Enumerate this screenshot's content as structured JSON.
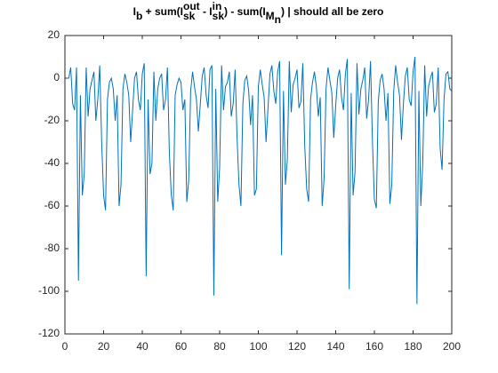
{
  "chart_data": {
    "type": "line",
    "title": [
      {
        "text": "I"
      },
      {
        "text": "b",
        "style": "sub"
      },
      {
        "text": " + sum(I"
      },
      {
        "text": "out",
        "style": "sup"
      },
      {
        "text": "sk",
        "style": "sub"
      },
      {
        "text": " - I"
      },
      {
        "text": "in",
        "style": "sup"
      },
      {
        "text": "sk",
        "style": "sub"
      },
      {
        "text": ") - sum(I"
      },
      {
        "text": "M",
        "style": "sub"
      },
      {
        "text": "n",
        "style": "subsub"
      },
      {
        "text": ") | should all be zero"
      }
    ],
    "color": "#0072bd",
    "xlim": [
      0,
      200
    ],
    "xticks": [
      0,
      20,
      40,
      60,
      80,
      100,
      120,
      140,
      160,
      180,
      200
    ],
    "ylim": [
      -120,
      20
    ],
    "yticks": [
      -120,
      -100,
      -80,
      -60,
      -40,
      -20,
      0,
      20
    ],
    "x": [
      1,
      2,
      3,
      4,
      5,
      6,
      7,
      8,
      9,
      10,
      11,
      12,
      13,
      14,
      15,
      16,
      17,
      18,
      19,
      20,
      21,
      22,
      23,
      24,
      25,
      26,
      27,
      28,
      29,
      30,
      31,
      32,
      33,
      34,
      35,
      36,
      37,
      38,
      39,
      40,
      41,
      42,
      43,
      44,
      45,
      46,
      47,
      48,
      49,
      50,
      51,
      52,
      53,
      54,
      55,
      56,
      57,
      58,
      59,
      60,
      61,
      62,
      63,
      64,
      65,
      66,
      67,
      68,
      69,
      70,
      71,
      72,
      73,
      74,
      75,
      76,
      77,
      78,
      79,
      80,
      81,
      82,
      83,
      84,
      85,
      86,
      87,
      88,
      89,
      90,
      91,
      92,
      93,
      94,
      95,
      96,
      97,
      98,
      99,
      100,
      101,
      102,
      103,
      104,
      105,
      106,
      107,
      108,
      109,
      110,
      111,
      112,
      113,
      114,
      115,
      116,
      117,
      118,
      119,
      120,
      121,
      122,
      123,
      124,
      125,
      126,
      127,
      128,
      129,
      130,
      131,
      132,
      133,
      134,
      135,
      136,
      137,
      138,
      139,
      140,
      141,
      142,
      143,
      144,
      145,
      146,
      147,
      148,
      149,
      150,
      151,
      152,
      153,
      154,
      155,
      156,
      157,
      158,
      159,
      160,
      161,
      162,
      163,
      164,
      165,
      166,
      167,
      168,
      169,
      170,
      171,
      172,
      173,
      174,
      175,
      176,
      177,
      178,
      179,
      180,
      181,
      182,
      183,
      184,
      185,
      186,
      187,
      188,
      189,
      190,
      191,
      192,
      193,
      194,
      195,
      196,
      197,
      198,
      199,
      200
    ],
    "values": [
      0,
      0,
      5,
      -12,
      -15,
      5,
      -95,
      -8,
      -55,
      -45,
      5,
      -18,
      -5,
      -1,
      3,
      -20,
      -10,
      6,
      -30,
      -55,
      -62,
      -10,
      -2,
      0,
      -5,
      -20,
      -8,
      -60,
      -50,
      -5,
      2,
      -2,
      -8,
      -30,
      -15,
      0,
      3,
      -10,
      -15,
      2,
      7,
      -93,
      -10,
      -45,
      -40,
      3,
      -20,
      -5,
      0,
      2,
      -15,
      -10,
      5,
      -35,
      -55,
      -62,
      -8,
      -3,
      0,
      -2,
      -15,
      -10,
      -58,
      -48,
      -6,
      3,
      -4,
      -10,
      -25,
      -12,
      1,
      5,
      -8,
      -14,
      4,
      6,
      -102,
      -5,
      -58,
      -42,
      6,
      -15,
      -4,
      -2,
      3,
      -18,
      -12,
      4,
      -28,
      -50,
      -60,
      -12,
      -1,
      1,
      -6,
      -22,
      -8,
      -55,
      -52,
      -4,
      4,
      -3,
      -9,
      -30,
      -14,
      2,
      6,
      -6,
      -12,
      3,
      8,
      -83,
      -6,
      -50,
      -38,
      8,
      -16,
      -3,
      0,
      4,
      -14,
      -11,
      7,
      -32,
      -52,
      -58,
      -10,
      -2,
      3,
      -4,
      -18,
      -9,
      -60,
      -47,
      -5,
      5,
      -1,
      -7,
      -28,
      -13,
      0,
      4,
      -9,
      -15,
      2,
      9,
      -99,
      -7,
      -55,
      -44,
      7,
      -17,
      -5,
      -1,
      5,
      -19,
      -10,
      8,
      -30,
      -57,
      -61,
      -11,
      -1,
      2,
      -5,
      -20,
      -7,
      -59,
      -50,
      -6,
      6,
      -2,
      -8,
      -29,
      -12,
      1,
      5,
      -10,
      -13,
      3,
      10,
      -106,
      -6,
      -60,
      -40,
      6,
      -18,
      -4,
      0,
      3,
      -16,
      -12,
      5,
      -33,
      -43,
      -10,
      2,
      3,
      -5,
      -6
    ]
  }
}
